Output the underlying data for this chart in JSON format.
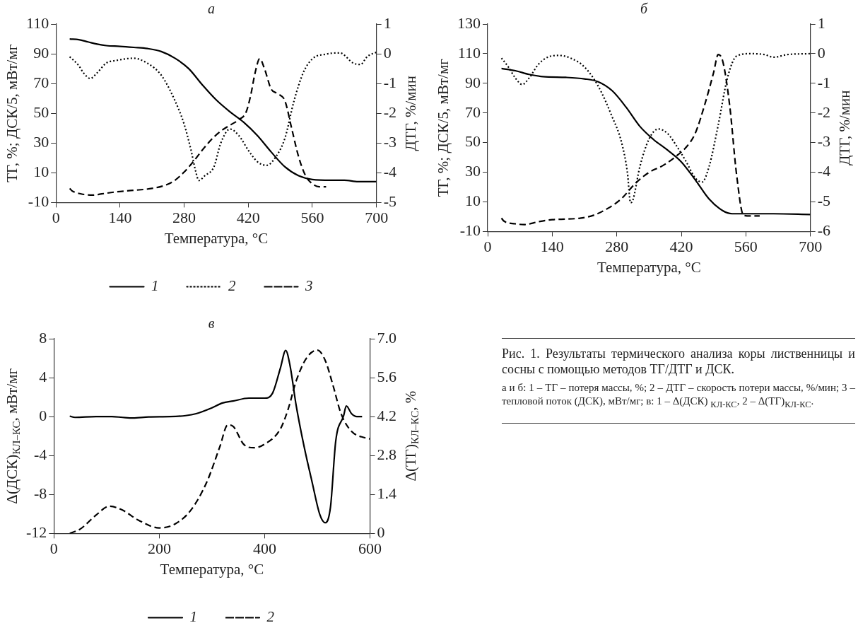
{
  "chart_data": [
    {
      "type": "line",
      "title": "а",
      "xlabel": "Температура, °C",
      "ylabel": "ТГ, %; ДСК/5, мВт/мг",
      "y2label": "ДТГ, %/мин",
      "xlim": [
        0,
        700
      ],
      "xticks": [
        0,
        140,
        280,
        420,
        560,
        700
      ],
      "ylim": [
        -10,
        110
      ],
      "yticks": [
        -10,
        10,
        30,
        50,
        70,
        90,
        110
      ],
      "y2lim": [
        -5,
        1
      ],
      "y2ticks": [
        -5,
        -4,
        -3,
        -2,
        -1,
        0,
        1
      ],
      "legend": "bottom",
      "marker": "none",
      "series": [
        {
          "name": "1",
          "color": "#000000",
          "line_style": "solid",
          "x": [
            30,
            50,
            70,
            90,
            110,
            140,
            170,
            200,
            230,
            260,
            290,
            320,
            350,
            380,
            410,
            440,
            470,
            500,
            530,
            560,
            600,
            630,
            660,
            700
          ],
          "values": [
            100,
            99.5,
            98,
            96.5,
            95.5,
            95,
            94.3,
            93.5,
            91.5,
            87,
            80,
            69,
            59,
            51,
            44,
            35,
            24,
            14,
            8,
            5.5,
            5,
            5,
            4,
            4
          ]
        },
        {
          "name": "2",
          "color": "#000000",
          "line_style": "dotted",
          "axis": "y2",
          "x": [
            30,
            50,
            60,
            75,
            90,
            110,
            130,
            170,
            200,
            230,
            260,
            280,
            295,
            305,
            312,
            325,
            345,
            360,
            380,
            400,
            420,
            440,
            460,
            480,
            500,
            520,
            540,
            560,
            590,
            620,
            650,
            665,
            680,
            700
          ],
          "values": [
            -0.1,
            -0.4,
            -0.64,
            -0.83,
            -0.64,
            -0.31,
            -0.23,
            -0.15,
            -0.32,
            -0.72,
            -1.58,
            -2.37,
            -3.24,
            -3.94,
            -4.26,
            -4.1,
            -3.8,
            -3.0,
            -2.53,
            -2.76,
            -3.24,
            -3.63,
            -3.75,
            -3.47,
            -2.84,
            -1.58,
            -0.64,
            -0.17,
            -0.01,
            0.03,
            -0.32,
            -0.36,
            -0.09,
            0.05
          ]
        },
        {
          "name": "3",
          "color": "#000000",
          "line_style": "dashed",
          "x": [
            30,
            35,
            55,
            80,
            100,
            130,
            170,
            210,
            240,
            260,
            280,
            300,
            320,
            340,
            360,
            380,
            400,
            415,
            425,
            435,
            445,
            455,
            470,
            485,
            500,
            515,
            530,
            545,
            560,
            575,
            590
          ],
          "values": [
            -0.5,
            -2.1,
            -4.2,
            -5,
            -4.2,
            -2.9,
            -1.8,
            -0.5,
            1.8,
            5,
            10.5,
            17.5,
            25.4,
            32.5,
            38,
            42,
            45.8,
            50.6,
            61.6,
            77.3,
            86.7,
            80.4,
            66.3,
            63.1,
            58.4,
            39.6,
            20.7,
            8.1,
            2.6,
            0.6,
            0.6
          ]
        }
      ]
    },
    {
      "type": "line",
      "title": "б",
      "xlabel": "Температура, °C",
      "ylabel": "ТГ, %; ДСК/5, мВт/мг",
      "y2label": "ДТГ, %/мин",
      "xlim": [
        0,
        700
      ],
      "xticks": [
        0,
        140,
        280,
        420,
        560,
        700
      ],
      "ylim": [
        -10,
        130
      ],
      "yticks": [
        -10,
        10,
        30,
        50,
        70,
        90,
        110,
        130
      ],
      "y2lim": [
        -6,
        1
      ],
      "y2ticks": [
        -6,
        -5,
        -4,
        -3,
        -2,
        -1,
        0,
        1
      ],
      "marker": "none",
      "series": [
        {
          "color": "#000000",
          "line_style": "solid",
          "x": [
            30,
            60,
            90,
            120,
            170,
            210,
            240,
            270,
            300,
            330,
            360,
            390,
            420,
            450,
            480,
            510,
            530,
            560,
            620,
            700
          ],
          "values": [
            100,
            98.5,
            96,
            94.5,
            94,
            93,
            91,
            85,
            74,
            61,
            52,
            45,
            37,
            25,
            12,
            4,
            2,
            2,
            2,
            1.5
          ]
        },
        {
          "color": "#000000",
          "line_style": "dotted",
          "axis": "y2",
          "x": [
            30,
            45,
            60,
            75,
            90,
            110,
            130,
            155,
            180,
            210,
            240,
            270,
            290,
            303,
            310,
            315,
            330,
            350,
            370,
            390,
            410,
            430,
            450,
            465,
            480,
            500,
            520,
            540,
            570,
            600,
            620,
            650,
            700
          ],
          "values": [
            -0.15,
            -0.45,
            -0.82,
            -1.04,
            -0.82,
            -0.36,
            -0.12,
            -0.06,
            -0.15,
            -0.45,
            -1.1,
            -2.13,
            -2.97,
            -4.0,
            -5.03,
            -4.94,
            -3.82,
            -2.88,
            -2.54,
            -2.69,
            -3.12,
            -3.63,
            -4.19,
            -4.33,
            -3.82,
            -2.41,
            -0.82,
            -0.08,
            0,
            -0.03,
            -0.12,
            -0.03,
            0
          ]
        },
        {
          "color": "#000000",
          "line_style": "dashed",
          "x": [
            30,
            35,
            60,
            80,
            110,
            140,
            200,
            230,
            260,
            290,
            320,
            350,
            380,
            410,
            430,
            450,
            470,
            490,
            500,
            510,
            525,
            540,
            555,
            570,
            590
          ],
          "values": [
            -1,
            -2.9,
            -4.8,
            -5.3,
            -3.4,
            -2,
            -1,
            1,
            5.5,
            12.1,
            22.4,
            29.9,
            34.5,
            41.1,
            46.7,
            56.1,
            74.8,
            97.2,
            109.4,
            104.7,
            74.8,
            28,
            0.9,
            0.5,
            0.5
          ]
        }
      ]
    },
    {
      "type": "line",
      "title": "в",
      "xlabel": "Температура, °C",
      "ylabel": "Δ(ДСК)$_{КЛ–КС}$, мВт/мг",
      "y2label": "Δ(ТГ)$_{КЛ–КС}$, %",
      "xlim": [
        0,
        600
      ],
      "xticks": [
        0,
        200,
        400,
        600
      ],
      "ylim": [
        -12,
        8
      ],
      "yticks": [
        -12,
        -8,
        -4,
        0,
        4,
        8
      ],
      "y2lim": [
        0,
        7
      ],
      "y2ticks": [
        0,
        1.4,
        2.8,
        4.2,
        5.6,
        {
          "value": 7,
          "label": "7.0"
        }
      ],
      "legend": "bottom",
      "marker": "none",
      "series": [
        {
          "name": "1",
          "color": "#000000",
          "line_style": "solid",
          "x": [
            30,
            40,
            80,
            110,
            130,
            150,
            180,
            220,
            250,
            270,
            300,
            320,
            340,
            370,
            400,
            415,
            430,
            440,
            448,
            460,
            475,
            490,
            505,
            515,
            525,
            535,
            550,
            555,
            565,
            575,
            585
          ],
          "values": [
            0.05,
            -0.08,
            0,
            0,
            -0.08,
            -0.14,
            -0.03,
            0,
            0.1,
            0.3,
            0.9,
            1.4,
            1.6,
            1.9,
            1.9,
            2.4,
            5,
            6.8,
            5.3,
            1.1,
            -3.1,
            -6.7,
            -10.1,
            -10.9,
            -9.3,
            -2.5,
            0.1,
            1.1,
            0.3,
            0,
            0
          ]
        },
        {
          "name": "2",
          "color": "#000000",
          "line_style": "dashed",
          "axis": "y2",
          "x": [
            30,
            50,
            80,
            105,
            130,
            160,
            200,
            230,
            260,
            290,
            315,
            330,
            340,
            360,
            380,
            400,
            430,
            445,
            460,
            480,
            500,
            515,
            530,
            545,
            565,
            590,
            600
          ],
          "values": [
            0,
            0.16,
            0.66,
            0.98,
            0.84,
            0.48,
            0.2,
            0.34,
            0.84,
            1.84,
            3.12,
            3.9,
            3.85,
            3.21,
            3.08,
            3.21,
            3.76,
            4.49,
            5.49,
            6.32,
            6.59,
            6.22,
            5.31,
            4.31,
            3.67,
            3.44,
            3.4
          ]
        }
      ],
      "annotations": [
        "Рис. 1. Результаты термического анализа коры лиственницы и сосны с помощью методов ТГ/ДТГ и ДСК.",
        "а и б: 1 – ТГ – потеря массы, %; 2 – ДТГ – скорость потери массы, %/мин; 3 – тепловой поток (ДСК), мВт/мг; в: 1 – Δ(ДСК) $_{КЛ-КС}$, 2 – Δ(ТГ)$_{КЛ-КС}$."
      ]
    }
  ]
}
